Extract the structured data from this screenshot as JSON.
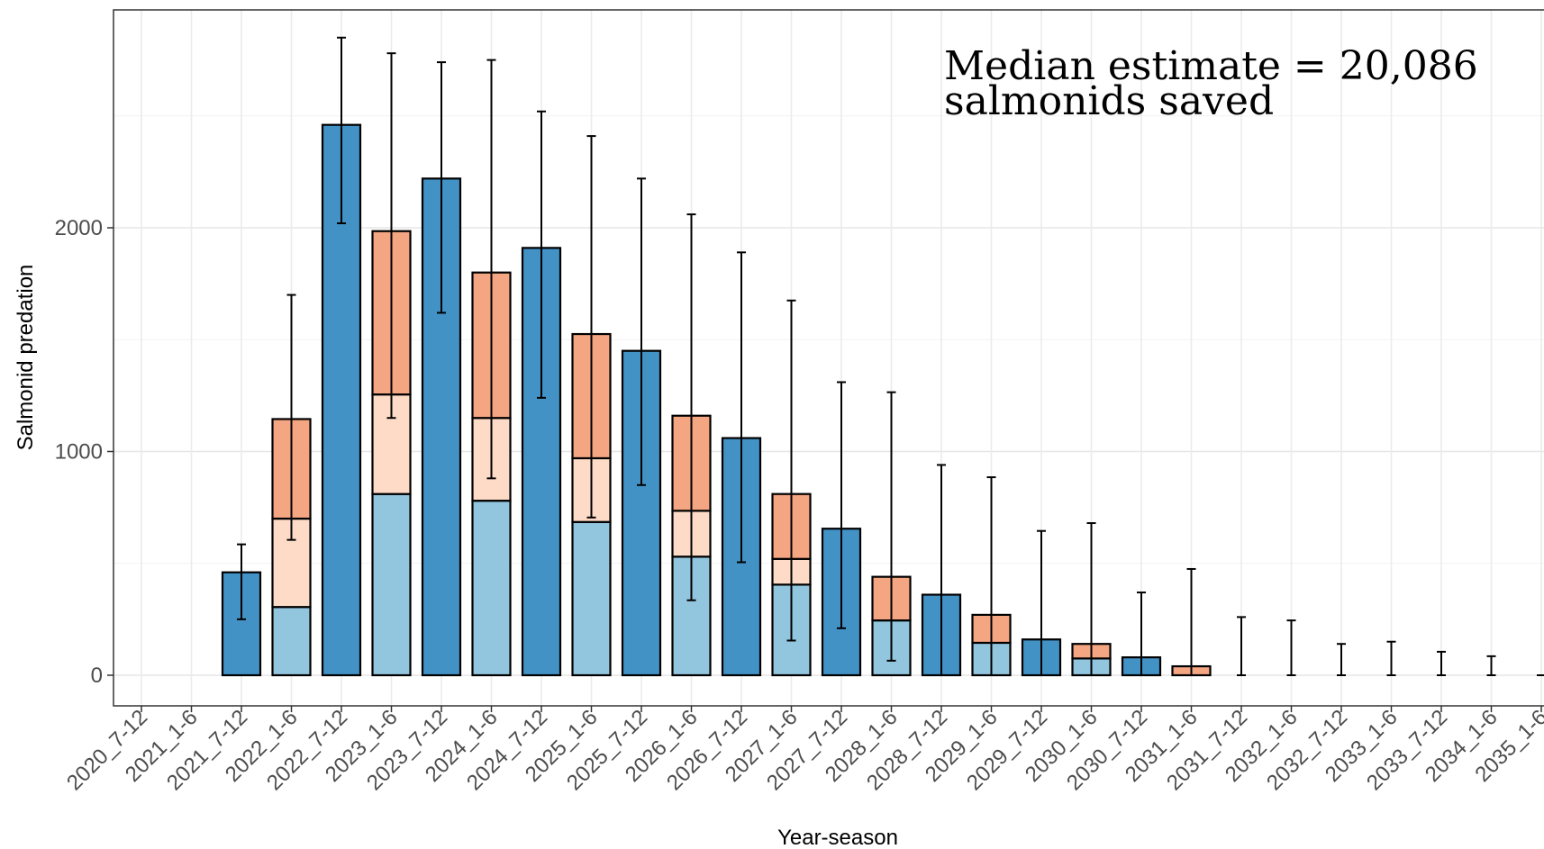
{
  "chart_data": {
    "type": "bar",
    "stacked": true,
    "xlabel": "Year-season",
    "ylabel": "Salmonid predation",
    "yticks": [
      0,
      1000,
      2000
    ],
    "ylim": [
      -140,
      2980
    ],
    "grid": true,
    "annotation": [
      "Median estimate = 20,086",
      "salmonids saved"
    ],
    "colors": {
      "dark_blue": "#4292c6",
      "light_blue": "#92c5de",
      "light_peach": "#fddbc7",
      "salmon": "#f4a582"
    },
    "categories": [
      "2020_7-12",
      "2021_1-6",
      "2021_7-12",
      "2022_1-6",
      "2022_7-12",
      "2023_1-6",
      "2023_7-12",
      "2024_1-6",
      "2024_7-12",
      "2025_1-6",
      "2025_7-12",
      "2026_1-6",
      "2026_7-12",
      "2027_1-6",
      "2027_7-12",
      "2028_1-6",
      "2028_7-12",
      "2029_1-6",
      "2029_7-12",
      "2030_1-6",
      "2030_7-12",
      "2031_1-6",
      "2031_7-12",
      "2032_1-6",
      "2032_7-12",
      "2033_1-6",
      "2033_7-12",
      "2034_1-6",
      "2035_1-6"
    ],
    "series": [
      {
        "color": "dark_blue",
        "values": [
          null,
          null,
          460,
          null,
          2460,
          null,
          2220,
          null,
          1910,
          null,
          1450,
          null,
          1060,
          null,
          655,
          null,
          360,
          null,
          160,
          null,
          80,
          null,
          null,
          null,
          null,
          null,
          null,
          null,
          null
        ]
      },
      {
        "color": "light_blue",
        "values": [
          null,
          null,
          null,
          305,
          null,
          810,
          null,
          780,
          null,
          685,
          null,
          530,
          null,
          405,
          null,
          245,
          null,
          145,
          null,
          75,
          null,
          null,
          null,
          null,
          null,
          null,
          null,
          null,
          null
        ]
      },
      {
        "color": "light_peach",
        "values": [
          null,
          null,
          null,
          395,
          null,
          445,
          null,
          370,
          null,
          285,
          null,
          205,
          null,
          115,
          null,
          null,
          null,
          null,
          null,
          null,
          null,
          null,
          null,
          null,
          null,
          null,
          null,
          null,
          null
        ]
      },
      {
        "color": "salmon",
        "values": [
          null,
          null,
          null,
          445,
          null,
          730,
          null,
          650,
          null,
          555,
          null,
          425,
          null,
          290,
          null,
          195,
          null,
          125,
          null,
          65,
          null,
          40,
          null,
          null,
          null,
          null,
          null,
          null,
          null
        ]
      }
    ],
    "error_bars": [
      null,
      null,
      [
        250,
        585
      ],
      [
        605,
        1700
      ],
      [
        2020,
        2850
      ],
      [
        1150,
        2780
      ],
      [
        1620,
        2740
      ],
      [
        880,
        2750
      ],
      [
        1240,
        2520
      ],
      [
        705,
        2410
      ],
      [
        850,
        2220
      ],
      [
        335,
        2060
      ],
      [
        505,
        1890
      ],
      [
        155,
        1675
      ],
      [
        210,
        1310
      ],
      [
        65,
        1265
      ],
      [
        0,
        940
      ],
      [
        0,
        885
      ],
      [
        0,
        645
      ],
      [
        0,
        680
      ],
      [
        0,
        370
      ],
      [
        0,
        475
      ],
      [
        0,
        260
      ],
      [
        0,
        245
      ],
      [
        0,
        140
      ],
      [
        0,
        150
      ],
      [
        0,
        105
      ],
      [
        0,
        85
      ],
      [
        0,
        0
      ]
    ]
  }
}
